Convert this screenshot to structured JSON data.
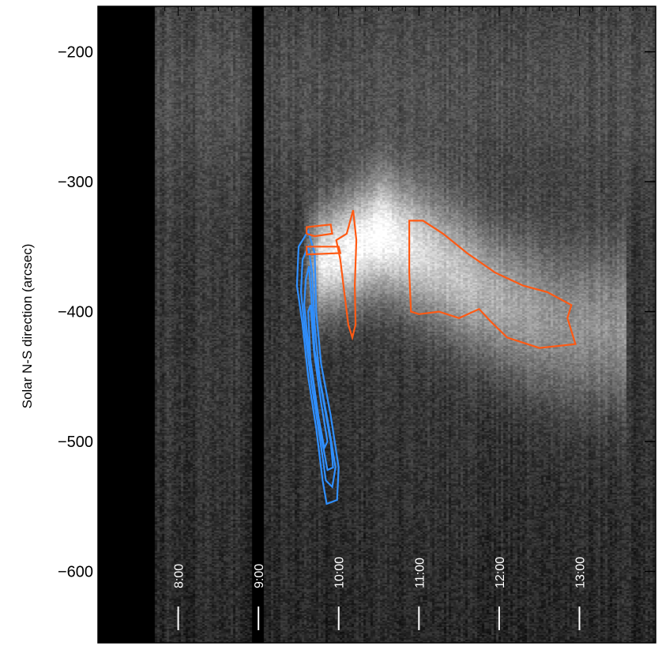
{
  "chart_data": {
    "type": "heatmap",
    "title": "",
    "xlabel": "",
    "ylabel": "Solar N-S direction (arcsec)",
    "ylim": [
      -165,
      -655
    ],
    "yticks": [
      -200,
      -300,
      -400,
      -500,
      -600
    ],
    "ytick_labels": [
      "−200",
      "−300",
      "−400",
      "−500",
      "−600"
    ],
    "xlim_hours": [
      7.0,
      13.95
    ],
    "time_marks": [
      {
        "label": "8:00",
        "hour": 8.0
      },
      {
        "label": "9:00",
        "hour": 9.0
      },
      {
        "label": "10:00",
        "hour": 10.0
      },
      {
        "label": "11:00",
        "hour": 11.0
      },
      {
        "label": "12:00",
        "hour": 12.0
      },
      {
        "label": "13:00",
        "hour": 13.0
      }
    ],
    "data_gaps_hours": [
      [
        7.0,
        7.7
      ],
      [
        8.92,
        9.08
      ]
    ],
    "bright_feature": {
      "description_points": [
        {
          "hour": 9.85,
          "y": -360,
          "brightness": 0.95
        },
        {
          "hour": 10.55,
          "y": -340,
          "brightness": 1.0
        },
        {
          "hour": 11.2,
          "y": -360,
          "brightness": 0.75
        },
        {
          "hour": 12.0,
          "y": -390,
          "brightness": 0.6
        },
        {
          "hour": 12.8,
          "y": -410,
          "brightness": 0.45
        }
      ]
    },
    "colors": {
      "blue_contour": "#2f8fff",
      "orange_contour": "#ff5a14"
    },
    "contours": [
      {
        "color": "blue",
        "rings": [
          [
            [
              9.5,
              -350
            ],
            [
              9.62,
              -338
            ],
            [
              9.7,
              -355
            ],
            [
              9.72,
              -400
            ],
            [
              9.78,
              -440
            ],
            [
              9.9,
              -480
            ],
            [
              10.0,
              -520
            ],
            [
              9.98,
              -545
            ],
            [
              9.85,
              -548
            ],
            [
              9.8,
              -530
            ],
            [
              9.72,
              -490
            ],
            [
              9.62,
              -450
            ],
            [
              9.55,
              -410
            ],
            [
              9.48,
              -380
            ]
          ],
          [
            [
              9.55,
              -360
            ],
            [
              9.62,
              -350
            ],
            [
              9.67,
              -370
            ],
            [
              9.7,
              -410
            ],
            [
              9.76,
              -450
            ],
            [
              9.88,
              -490
            ],
            [
              9.96,
              -520
            ],
            [
              9.92,
              -535
            ],
            [
              9.84,
              -530
            ],
            [
              9.76,
              -495
            ],
            [
              9.66,
              -455
            ],
            [
              9.58,
              -415
            ],
            [
              9.53,
              -385
            ]
          ],
          [
            [
              9.59,
              -375
            ],
            [
              9.63,
              -365
            ],
            [
              9.66,
              -390
            ],
            [
              9.7,
              -430
            ],
            [
              9.8,
              -465
            ],
            [
              9.9,
              -500
            ],
            [
              9.93,
              -520
            ],
            [
              9.86,
              -522
            ],
            [
              9.78,
              -495
            ],
            [
              9.7,
              -460
            ],
            [
              9.62,
              -425
            ],
            [
              9.57,
              -395
            ]
          ],
          [
            [
              9.62,
              -400
            ],
            [
              9.65,
              -395
            ],
            [
              9.69,
              -430
            ],
            [
              9.78,
              -470
            ],
            [
              9.86,
              -500
            ],
            [
              9.82,
              -505
            ],
            [
              9.73,
              -475
            ],
            [
              9.65,
              -440
            ]
          ]
        ]
      },
      {
        "color": "orange",
        "rings": [
          [
            [
              9.97,
              -345
            ],
            [
              10.1,
              -340
            ],
            [
              10.18,
              -322
            ],
            [
              10.22,
              -345
            ],
            [
              10.2,
              -380
            ],
            [
              10.21,
              -410
            ],
            [
              10.17,
              -420
            ],
            [
              10.12,
              -410
            ],
            [
              10.06,
              -380
            ],
            [
              10.02,
              -360
            ]
          ],
          [
            [
              9.6,
              -335
            ],
            [
              9.9,
              -333
            ],
            [
              9.92,
              -340
            ],
            [
              9.7,
              -342
            ],
            [
              9.6,
              -340
            ]
          ],
          [
            [
              9.6,
              -350
            ],
            [
              10.0,
              -350
            ],
            [
              10.02,
              -355
            ],
            [
              9.6,
              -356
            ]
          ],
          [
            [
              10.88,
              -330
            ],
            [
              11.05,
              -330
            ],
            [
              11.3,
              -340
            ],
            [
              11.6,
              -355
            ],
            [
              11.95,
              -370
            ],
            [
              12.3,
              -380
            ],
            [
              12.6,
              -385
            ],
            [
              12.9,
              -395
            ],
            [
              12.85,
              -405
            ],
            [
              12.95,
              -425
            ],
            [
              12.5,
              -428
            ],
            [
              12.1,
              -420
            ],
            [
              11.9,
              -408
            ],
            [
              11.75,
              -398
            ],
            [
              11.5,
              -405
            ],
            [
              11.25,
              -400
            ],
            [
              11.0,
              -402
            ],
            [
              10.9,
              -400
            ],
            [
              10.88,
              -370
            ]
          ]
        ]
      }
    ]
  }
}
